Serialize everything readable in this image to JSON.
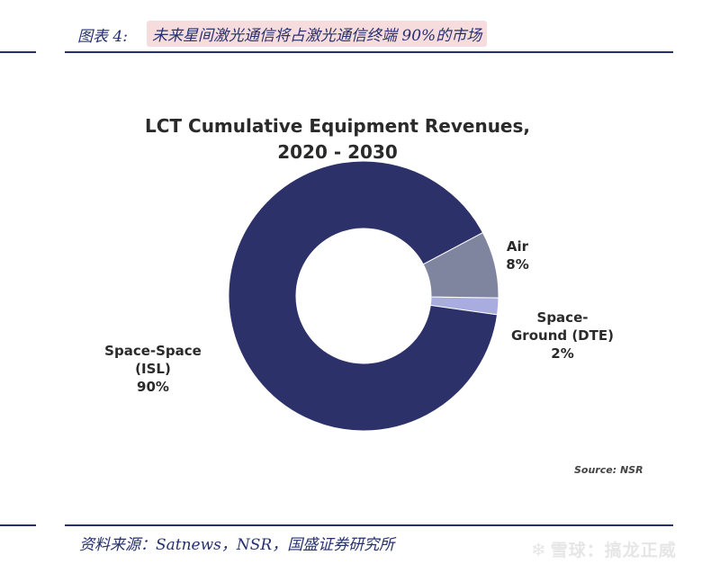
{
  "header": {
    "figure_label": "图表 4:",
    "title": "未来星间激光通信将占激光通信终端 90%的市场"
  },
  "chart_data": {
    "type": "donut",
    "title_line1": "LCT Cumulative Equipment Revenues,",
    "title_line2": "2020 - 2030",
    "slices": [
      {
        "name": "Space-Space (ISL)",
        "value": 90,
        "label_lines": [
          "Space-Space",
          "(ISL)",
          "90%"
        ],
        "color": "#2c3169"
      },
      {
        "name": "Air",
        "value": 8,
        "label_lines": [
          "Air",
          "8%"
        ],
        "color": "#7f849f"
      },
      {
        "name": "Space-Ground (DTE)",
        "value": 2,
        "label_lines": [
          "Space-",
          "Ground (DTE)",
          "2%"
        ],
        "color": "#a9acdf"
      }
    ],
    "source_note": "Source: NSR"
  },
  "footer": {
    "source": "资料来源：Satnews，NSR，国盛证券研究所"
  },
  "watermark": {
    "icon": "snowball-icon",
    "text": "雪球：搞龙正威"
  }
}
